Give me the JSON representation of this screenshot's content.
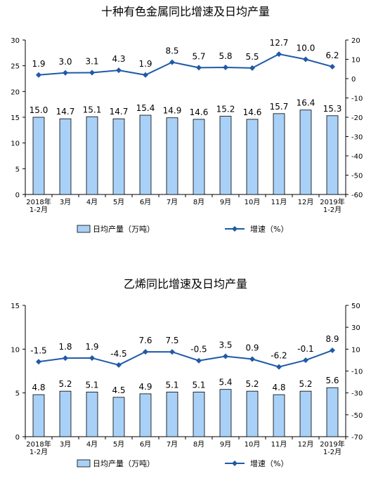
{
  "chart_data": [
    {
      "type": "bar",
      "title": "十种有色金属同比增速及日均产量",
      "categories": [
        "2018年\n1-2月",
        "3月",
        "4月",
        "5月",
        "6月",
        "7月",
        "8月",
        "9月",
        "10月",
        "11月",
        "12月",
        "2019年\n1-2月"
      ],
      "series": [
        {
          "name": "日均产量（万吨）",
          "type": "bar",
          "axis": "left",
          "values": [
            15.0,
            14.7,
            15.1,
            14.7,
            15.4,
            14.9,
            14.6,
            15.2,
            14.6,
            15.7,
            16.4,
            15.3
          ]
        },
        {
          "name": "增速（%）",
          "type": "line",
          "axis": "right",
          "values": [
            1.9,
            3.0,
            3.1,
            4.3,
            1.9,
            8.5,
            5.7,
            5.8,
            5.5,
            12.7,
            10.0,
            6.2
          ]
        }
      ],
      "ylim_left": [
        0,
        30
      ],
      "yticks_left": [
        0,
        5,
        10,
        15,
        20,
        25,
        30
      ],
      "ylim_right": [
        -60,
        20
      ],
      "yticks_right": [
        -60,
        -50,
        -40,
        -30,
        -20,
        -10,
        0,
        10,
        20
      ],
      "grid": false,
      "legend": "bottom"
    },
    {
      "type": "bar",
      "title": "乙烯同比增速及日均产量",
      "categories": [
        "2018年\n1-2月",
        "3月",
        "4月",
        "5月",
        "6月",
        "7月",
        "8月",
        "9月",
        "10月",
        "11月",
        "12月",
        "2019年\n1-2月"
      ],
      "series": [
        {
          "name": "日均产量（万吨）",
          "type": "bar",
          "axis": "left",
          "values": [
            4.8,
            5.2,
            5.1,
            4.5,
            4.9,
            5.1,
            5.1,
            5.4,
            5.2,
            4.8,
            5.2,
            5.6
          ]
        },
        {
          "name": "增速（%）",
          "type": "line",
          "axis": "right",
          "values": [
            -1.5,
            1.8,
            1.9,
            -4.5,
            7.6,
            7.5,
            -0.5,
            3.5,
            0.9,
            -6.2,
            -0.1,
            8.9
          ]
        }
      ],
      "ylim_left": [
        0,
        15
      ],
      "yticks_left": [
        0,
        5,
        10,
        15
      ],
      "ylim_right": [
        -70,
        50
      ],
      "yticks_right": [
        -70,
        -50,
        -30,
        -10,
        10,
        30,
        50
      ],
      "grid": false,
      "legend": "bottom"
    }
  ]
}
